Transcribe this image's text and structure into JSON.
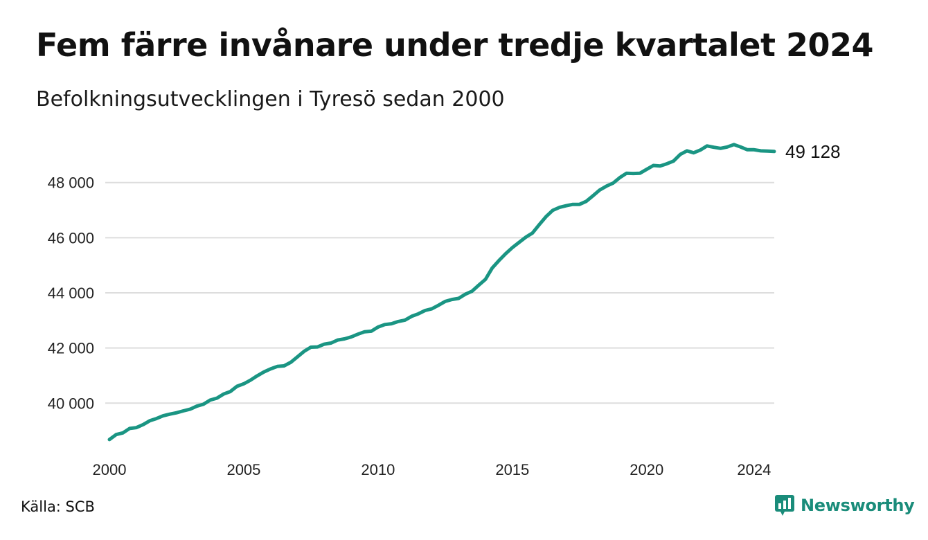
{
  "title": "Fem färre invånare under tredje kvartalet 2024",
  "subtitle": "Befolkningsutvecklingen i Tyresö sedan 2000",
  "source": "Källa: SCB",
  "brand": "Newsworthy",
  "end_label": "49 128",
  "colors": {
    "line": "#1a9583",
    "grid": "#dddddd",
    "brand": "#1a8c7a"
  },
  "chart_data": {
    "type": "line",
    "title": "Fem färre invånare under tredje kvartalet 2024",
    "subtitle": "Befolkningsutvecklingen i Tyresö sedan 2000",
    "xlabel": "",
    "ylabel": "",
    "xlim": [
      2000,
      2024.75
    ],
    "ylim": [
      38300,
      49600
    ],
    "x_ticks": [
      {
        "value": 2000,
        "label": "2000"
      },
      {
        "value": 2005,
        "label": "2005"
      },
      {
        "value": 2010,
        "label": "2010"
      },
      {
        "value": 2015,
        "label": "2015"
      },
      {
        "value": 2020,
        "label": "2020"
      },
      {
        "value": 2024,
        "label": "2024"
      }
    ],
    "y_ticks": [
      {
        "value": 40000,
        "label": "40 000"
      },
      {
        "value": 42000,
        "label": "42 000"
      },
      {
        "value": 44000,
        "label": "44 000"
      },
      {
        "value": 46000,
        "label": "46 000"
      },
      {
        "value": 48000,
        "label": "48 000"
      }
    ],
    "grid": "horizontal",
    "legend": "none",
    "series": [
      {
        "x": [
          2000,
          2000.25,
          2000.5,
          2000.75,
          2001,
          2001.25,
          2001.5,
          2001.75,
          2002,
          2002.25,
          2002.5,
          2002.75,
          2003,
          2003.25,
          2003.5,
          2003.75,
          2004,
          2004.25,
          2004.5,
          2004.75,
          2005,
          2005.25,
          2005.5,
          2005.75,
          2006,
          2006.25,
          2006.5,
          2006.75,
          2007,
          2007.25,
          2007.5,
          2007.75,
          2008,
          2008.25,
          2008.5,
          2008.75,
          2009,
          2009.25,
          2009.5,
          2009.75,
          2010,
          2010.25,
          2010.5,
          2010.75,
          2011,
          2011.25,
          2011.5,
          2011.75,
          2012,
          2012.25,
          2012.5,
          2012.75,
          2013,
          2013.25,
          2013.5,
          2013.75,
          2014,
          2014.25,
          2014.5,
          2014.75,
          2015,
          2015.25,
          2015.5,
          2015.75,
          2016,
          2016.25,
          2016.5,
          2016.75,
          2017,
          2017.25,
          2017.5,
          2017.75,
          2018,
          2018.25,
          2018.5,
          2018.75,
          2019,
          2019.25,
          2019.5,
          2019.75,
          2020,
          2020.25,
          2020.5,
          2020.75,
          2021,
          2021.25,
          2021.5,
          2021.75,
          2022,
          2022.25,
          2022.5,
          2022.75,
          2023,
          2023.25,
          2023.5,
          2023.75,
          2024,
          2024.25,
          2024.5,
          2024.75
        ],
        "values": [
          38680,
          38860,
          38920,
          39080,
          39110,
          39220,
          39360,
          39440,
          39540,
          39600,
          39650,
          39720,
          39780,
          39890,
          39960,
          40110,
          40180,
          40330,
          40420,
          40610,
          40700,
          40830,
          40990,
          41130,
          41240,
          41330,
          41350,
          41480,
          41680,
          41880,
          42030,
          42040,
          42140,
          42180,
          42290,
          42330,
          42400,
          42500,
          42590,
          42610,
          42760,
          42850,
          42880,
          42960,
          43010,
          43150,
          43240,
          43360,
          43420,
          43550,
          43690,
          43760,
          43800,
          43950,
          44060,
          44280,
          44490,
          44900,
          45170,
          45420,
          45640,
          45830,
          46020,
          46170,
          46470,
          46760,
          46990,
          47100,
          47160,
          47210,
          47210,
          47320,
          47520,
          47730,
          47870,
          47980,
          48180,
          48340,
          48330,
          48340,
          48480,
          48620,
          48600,
          48680,
          48780,
          49020,
          49150,
          49080,
          49180,
          49330,
          49280,
          49240,
          49290,
          49380,
          49290,
          49190,
          49190,
          49150,
          49140,
          49128
        ]
      }
    ]
  }
}
